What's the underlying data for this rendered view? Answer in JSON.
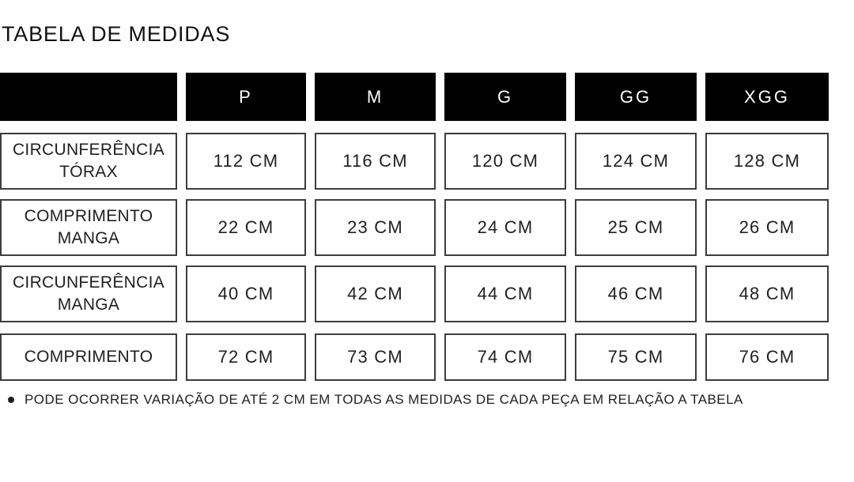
{
  "title": "TABELA DE MEDIDAS",
  "table": {
    "sizes": [
      "P",
      "M",
      "G",
      "GG",
      "XGG"
    ],
    "rows": [
      {
        "label": "CIRCUNFERÊNCIA TÓRAX",
        "label_lines": [
          "CIRCUNFERÊNCIA",
          "TÓRAX"
        ],
        "values": [
          "112 CM",
          "116 CM",
          "120 CM",
          "124 CM",
          "128 CM"
        ]
      },
      {
        "label": "COMPRIMENTO MANGA",
        "label_lines": [
          "COMPRIMENTO",
          "MANGA"
        ],
        "values": [
          "22 CM",
          "23 CM",
          "24 CM",
          "25 CM",
          "26 CM"
        ]
      },
      {
        "label": "CIRCUNFERÊNCIA MANGA",
        "label_lines": [
          "CIRCUNFERÊNCIA",
          "MANGA"
        ],
        "values": [
          "40 CM",
          "42 CM",
          "44 CM",
          "46 CM",
          "48 CM"
        ]
      },
      {
        "label": "COMPRIMENTO",
        "label_lines": [
          "COMPRIMENTO"
        ],
        "values": [
          "72 CM",
          "73 CM",
          "74 CM",
          "75 CM",
          "76 CM"
        ]
      }
    ]
  },
  "footnote": "PODE OCORRER VARIAÇÃO DE ATÉ 2 CM EM TODAS AS MEDIDAS DE CADA PEÇA EM RELAÇÃO A TABELA",
  "colors": {
    "header_bg": "#000000",
    "header_text": "#ffffff",
    "cell_border": "#3d3d3d",
    "text": "#1f1f1f",
    "background": "#ffffff"
  }
}
